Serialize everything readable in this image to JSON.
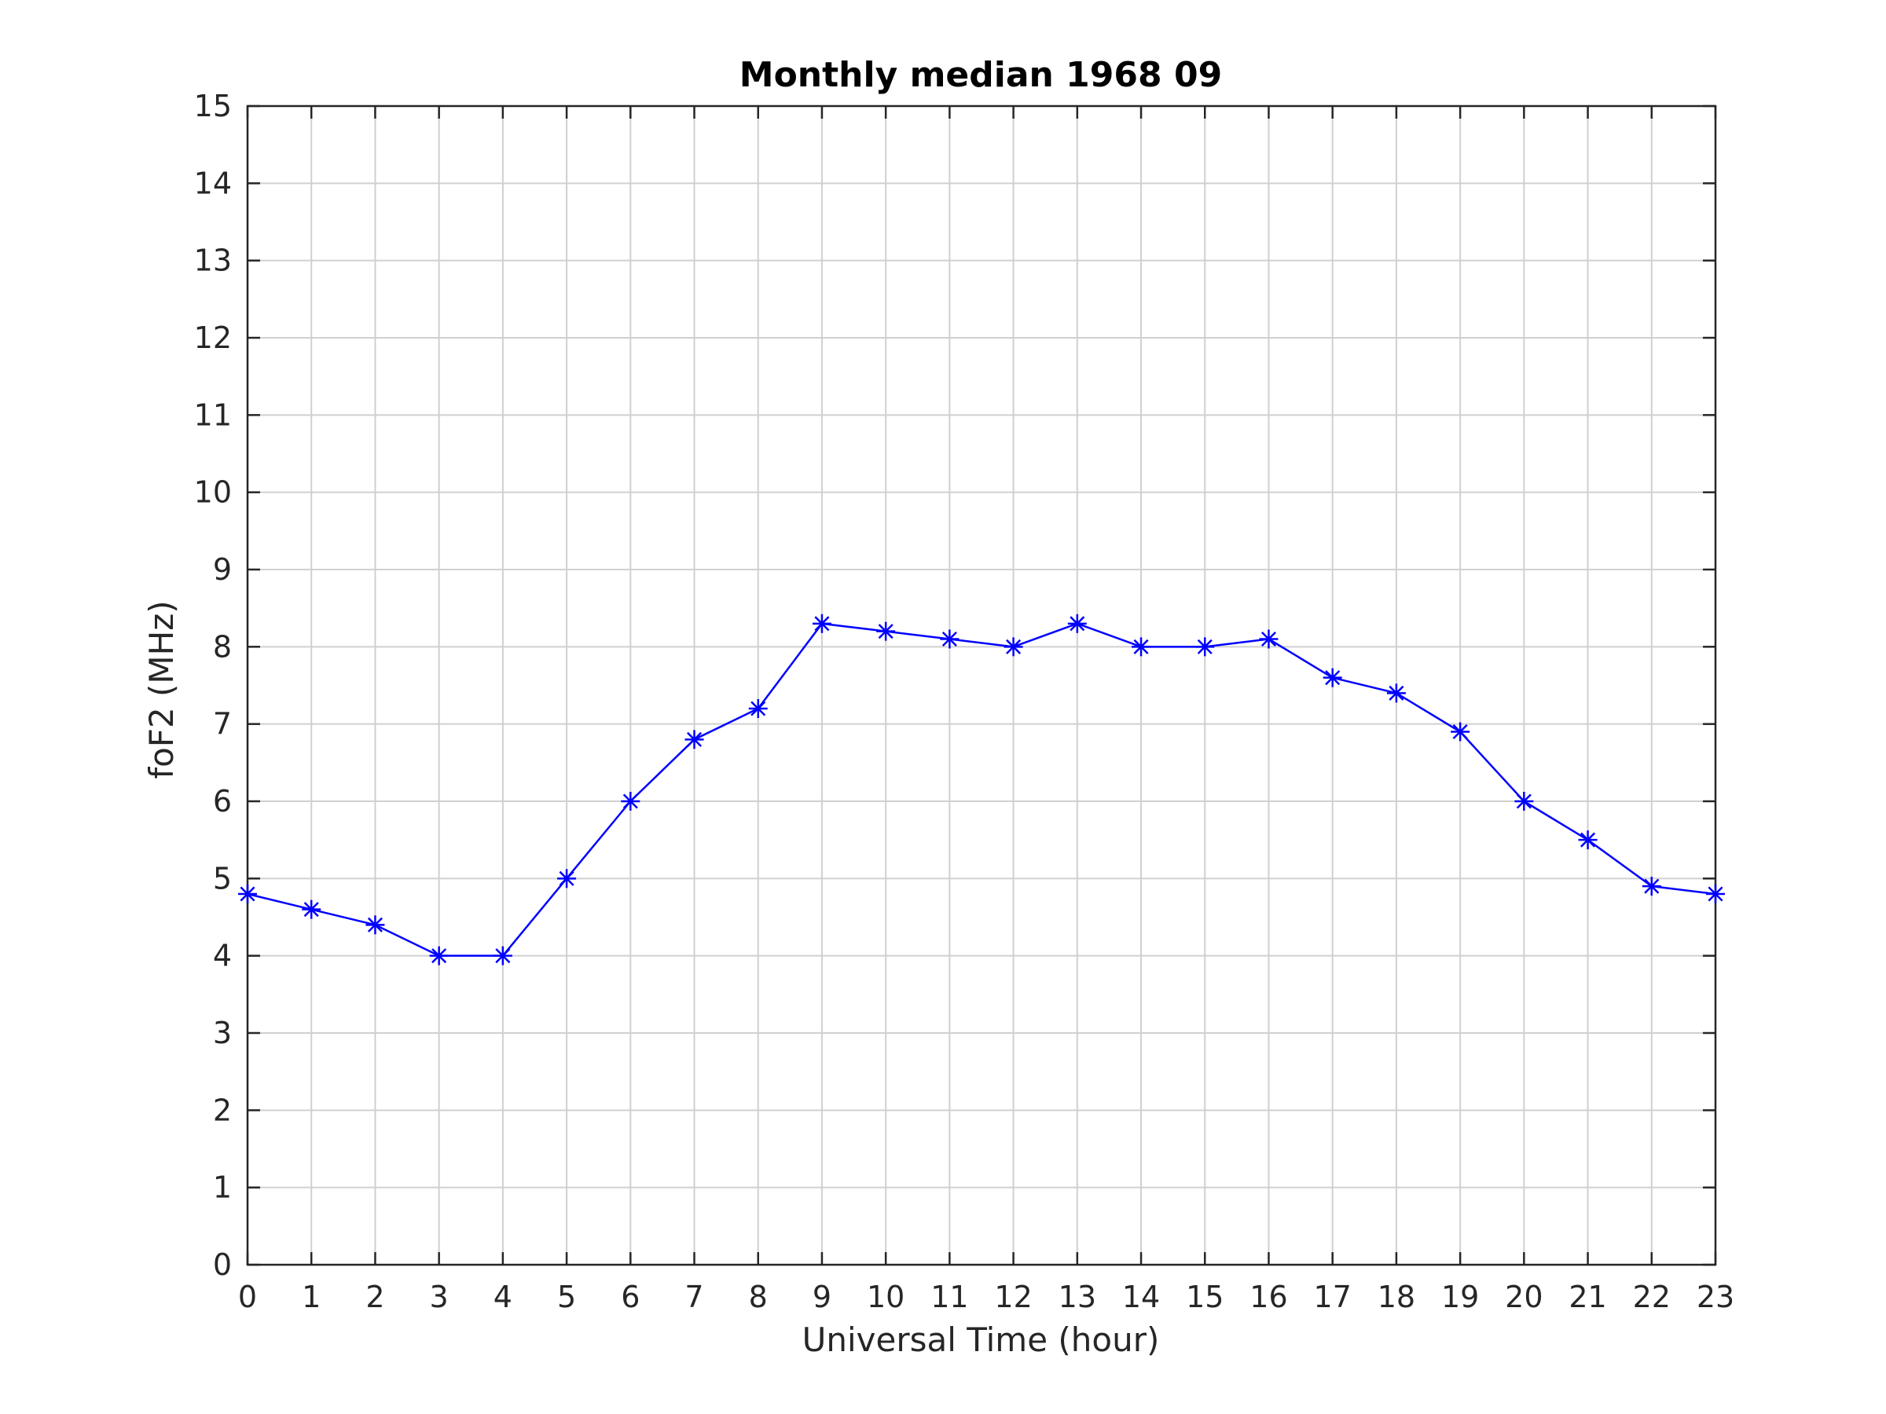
{
  "chart_data": {
    "type": "line",
    "title": "Monthly median 1968 09",
    "xlabel": "Universal Time (hour)",
    "ylabel": "foF2 (MHz)",
    "xlim": [
      0,
      23
    ],
    "ylim": [
      0,
      15
    ],
    "x_ticks": [
      0,
      1,
      2,
      3,
      4,
      5,
      6,
      7,
      8,
      9,
      10,
      11,
      12,
      13,
      14,
      15,
      16,
      17,
      18,
      19,
      20,
      21,
      22,
      23
    ],
    "y_ticks": [
      0,
      1,
      2,
      3,
      4,
      5,
      6,
      7,
      8,
      9,
      10,
      11,
      12,
      13,
      14,
      15
    ],
    "grid": true,
    "marker": "asterisk",
    "series": [
      {
        "color": "#0000ff",
        "x": [
          0,
          1,
          2,
          3,
          4,
          5,
          6,
          7,
          8,
          9,
          10,
          11,
          12,
          13,
          14,
          15,
          16,
          17,
          18,
          19,
          20,
          21,
          22,
          23
        ],
        "values": [
          4.8,
          4.6,
          4.4,
          4.0,
          4.0,
          5.0,
          6.0,
          6.8,
          7.2,
          8.3,
          8.2,
          8.1,
          8.0,
          8.3,
          8.0,
          8.0,
          8.1,
          7.6,
          7.4,
          6.9,
          6.0,
          5.5,
          4.9,
          4.8
        ]
      }
    ],
    "colors": {
      "axes": "#262626",
      "grid": "#d0d0d0",
      "line": "#0000ff"
    }
  }
}
